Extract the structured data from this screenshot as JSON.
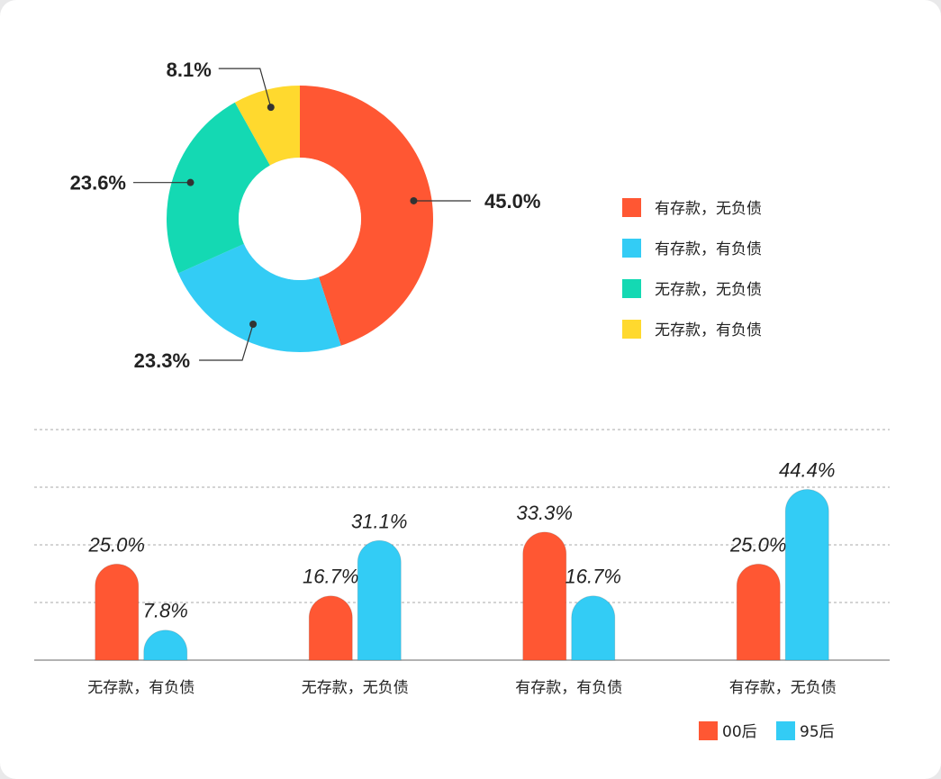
{
  "colors": {
    "red": "#ff5733",
    "blue": "#33ccf5",
    "green": "#14d9b3",
    "yellow": "#ffd92e"
  },
  "chart_data": [
    {
      "type": "pie",
      "donut": true,
      "slices": [
        {
          "name": "有存款，无负债",
          "value": 45.0,
          "label": "45.0%",
          "color": "#ff5733"
        },
        {
          "name": "有存款，有负债",
          "value": 23.3,
          "label": "23.3%",
          "color": "#33ccf5"
        },
        {
          "name": "无存款，无负债",
          "value": 23.6,
          "label": "23.6%",
          "color": "#14d9b3"
        },
        {
          "name": "无存款，有负债",
          "value": 8.1,
          "label": "8.1%",
          "color": "#ffd92e"
        }
      ],
      "legend_position": "right"
    },
    {
      "type": "bar",
      "categories": [
        "无存款，有负债",
        "无存款，无负债",
        "有存款，有负债",
        "有存款，无负债"
      ],
      "series": [
        {
          "name": "00后",
          "color": "#ff5733",
          "values": [
            25.0,
            16.7,
            33.3,
            25.0
          ],
          "labels": [
            "25.0%",
            "16.7%",
            "33.3%",
            "25.0%"
          ]
        },
        {
          "name": "95后",
          "color": "#33ccf5",
          "values": [
            7.8,
            31.1,
            16.7,
            44.4
          ],
          "labels": [
            "7.8%",
            "31.1%",
            "16.7%",
            "44.4%"
          ]
        }
      ],
      "ylim": [
        0,
        60
      ],
      "grid": true,
      "legend_position": "bottom-right"
    }
  ]
}
